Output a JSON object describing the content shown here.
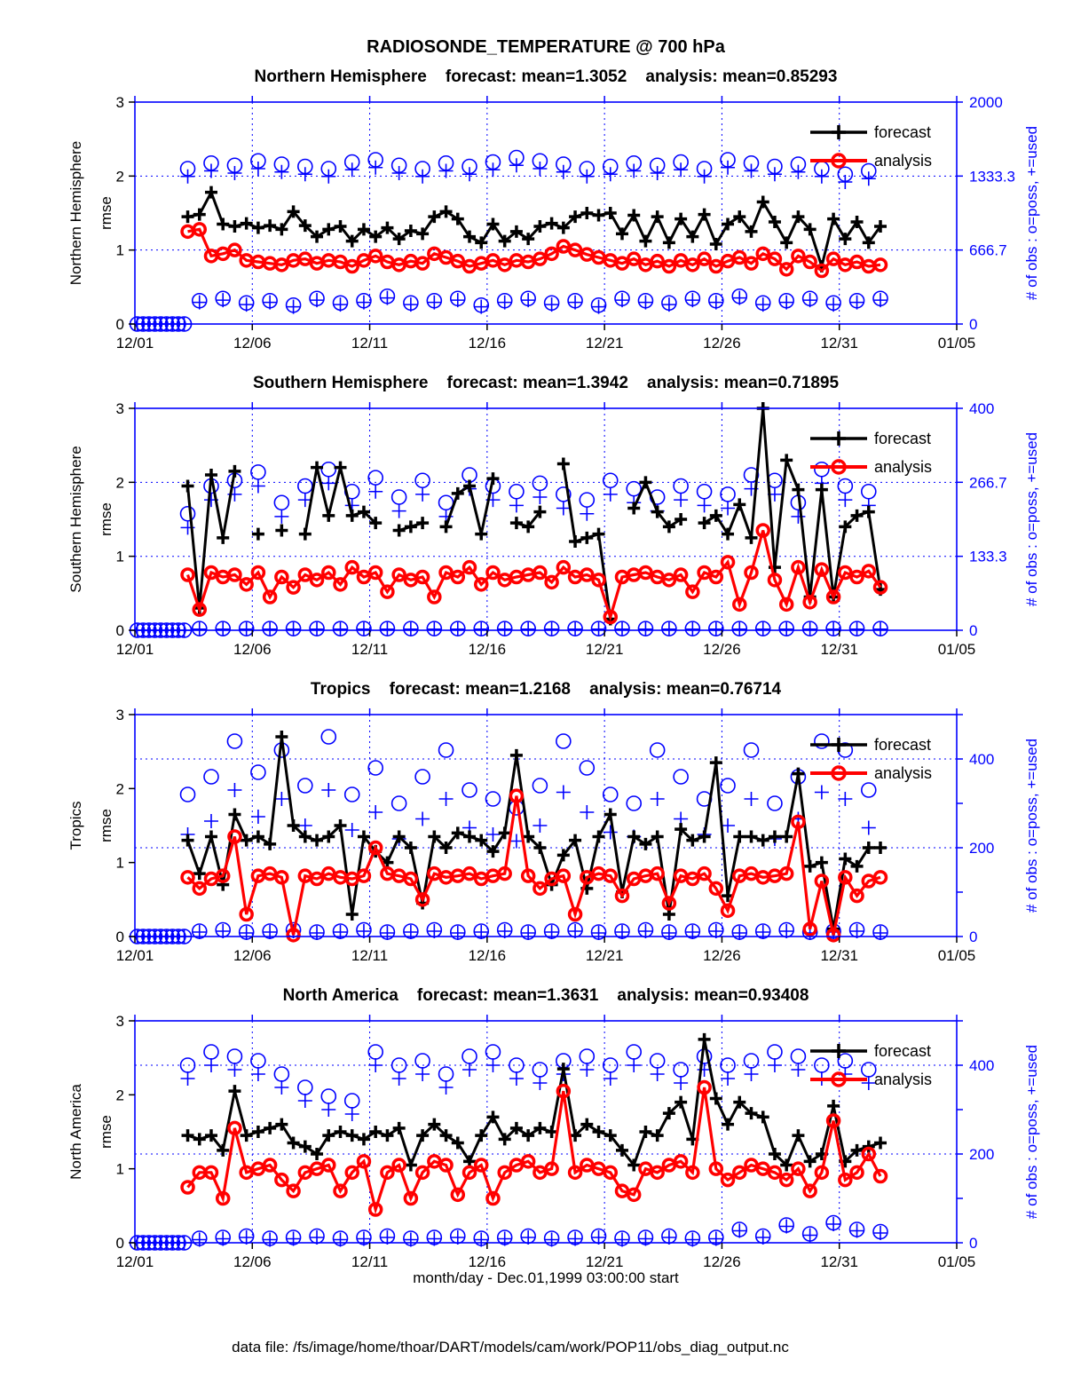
{
  "title": "RADIOSONDE_TEMPERATURE @ 700 hPa",
  "xlabel": "month/day - Dec.01,1999 03:00:00 start",
  "footer": "data file: /fs/image/home/thoar/DART/models/cam/work/POP11/obs_diag_output.nc",
  "legend": {
    "forecast": "forecast",
    "analysis": "analysis"
  },
  "labels": {
    "rmse": "rmse",
    "right_axis": "# of obs : o=poss, +=used"
  },
  "colors": {
    "forecast": "#000000",
    "analysis": "#ff0000",
    "obs": "#0000ff"
  },
  "chart_data": {
    "type": "line",
    "x_axis": {
      "tick_labels": [
        "12/01",
        "12/06",
        "12/11",
        "12/16",
        "12/21",
        "12/26",
        "12/31",
        "01/05"
      ],
      "tick_days": [
        0,
        5,
        10,
        15,
        20,
        25,
        30,
        35
      ],
      "max_day": 35
    },
    "left_axis": {
      "ticks": [
        0,
        1,
        2,
        3
      ],
      "max": 3,
      "label": "rmse"
    },
    "time_start_day": 2.25,
    "bin_days": 0.5,
    "lead_zero_days": [
      0.1,
      0.35,
      0.6,
      0.85,
      1.1,
      1.35,
      1.6,
      1.85,
      2.1
    ],
    "subplots": [
      {
        "region": "Northern Hemisphere",
        "title": "Northern Hemisphere    forecast: mean=1.3052    analysis: mean=0.85293",
        "forecast_mean": 1.3052,
        "analysis_mean": 0.85293,
        "right_axis": {
          "max": 2000,
          "ticks": [
            {
              "v": 0,
              "label": "0"
            },
            {
              "v": 666.7,
              "label": "666.7"
            },
            {
              "v": 1333.3,
              "label": "1333.3"
            },
            {
              "v": 2000,
              "label": "2000"
            }
          ],
          "marks": [
            0,
            666.7,
            1333.3,
            2000
          ],
          "grid": [
            666.7,
            1333.3
          ]
        },
        "forecast": [
          1.45,
          1.48,
          1.78,
          1.35,
          1.32,
          1.36,
          1.3,
          1.33,
          1.28,
          1.52,
          1.33,
          1.18,
          1.28,
          1.32,
          1.12,
          1.28,
          1.18,
          1.3,
          1.15,
          1.26,
          1.22,
          1.45,
          1.52,
          1.42,
          1.18,
          1.1,
          1.35,
          1.12,
          1.25,
          1.15,
          1.32,
          1.36,
          1.3,
          1.45,
          1.5,
          1.47,
          1.5,
          1.22,
          1.47,
          1.12,
          1.45,
          1.1,
          1.42,
          1.18,
          1.48,
          1.08,
          1.35,
          1.45,
          1.25,
          1.65,
          1.38,
          1.1,
          1.45,
          1.28,
          0.78,
          1.42,
          1.15,
          1.38,
          1.1,
          1.32
        ],
        "analysis": [
          1.25,
          1.28,
          0.92,
          0.95,
          1.0,
          0.86,
          0.84,
          0.82,
          0.8,
          0.86,
          0.88,
          0.82,
          0.86,
          0.84,
          0.78,
          0.86,
          0.92,
          0.84,
          0.8,
          0.85,
          0.82,
          0.95,
          0.9,
          0.85,
          0.78,
          0.82,
          0.86,
          0.8,
          0.86,
          0.84,
          0.88,
          0.95,
          1.05,
          1.0,
          0.94,
          0.9,
          0.86,
          0.82,
          0.88,
          0.8,
          0.85,
          0.78,
          0.86,
          0.8,
          0.88,
          0.78,
          0.85,
          0.9,
          0.82,
          0.95,
          0.88,
          0.74,
          0.92,
          0.84,
          0.72,
          0.88,
          0.8,
          0.84,
          0.78,
          0.8
        ],
        "obs_poss": [
          1400,
          210,
          1450,
          230,
          1430,
          190,
          1470,
          210,
          1440,
          170,
          1420,
          230,
          1400,
          190,
          1460,
          210,
          1480,
          250,
          1430,
          190,
          1400,
          210,
          1450,
          230,
          1420,
          170,
          1460,
          210,
          1500,
          230,
          1470,
          190,
          1440,
          210,
          1400,
          170,
          1420,
          230,
          1450,
          210,
          1430,
          190,
          1460,
          230,
          1400,
          210,
          1480,
          250,
          1450,
          190,
          1420,
          210,
          1440,
          230,
          1400,
          190,
          1350,
          210,
          1380,
          230
        ],
        "obs_used": [
          1330,
          195,
          1380,
          215,
          1360,
          175,
          1400,
          195,
          1370,
          155,
          1350,
          215,
          1330,
          175,
          1390,
          195,
          1410,
          235,
          1360,
          175,
          1330,
          195,
          1380,
          215,
          1350,
          155,
          1390,
          195,
          1430,
          215,
          1400,
          175,
          1370,
          195,
          1330,
          155,
          1350,
          215,
          1380,
          195,
          1360,
          175,
          1390,
          215,
          1330,
          195,
          1410,
          235,
          1380,
          175,
          1350,
          195,
          1370,
          215,
          1330,
          175,
          1280,
          195,
          1310,
          215
        ]
      },
      {
        "region": "Southern Hemisphere",
        "title": "Southern Hemisphere    forecast: mean=1.3942    analysis: mean=0.71895",
        "forecast_mean": 1.3942,
        "analysis_mean": 0.71895,
        "right_axis": {
          "max": 400,
          "ticks": [
            {
              "v": 0,
              "label": "0"
            },
            {
              "v": 133.3,
              "label": "133.3"
            },
            {
              "v": 266.7,
              "label": "266.7"
            },
            {
              "v": 400,
              "label": "400"
            }
          ],
          "marks": [
            0,
            133.3,
            266.7,
            400
          ],
          "grid": [
            133.3,
            266.7
          ]
        },
        "forecast": [
          1.95,
          0.3,
          2.1,
          1.25,
          2.15,
          null,
          1.3,
          null,
          1.35,
          null,
          1.3,
          2.2,
          1.55,
          2.2,
          1.55,
          1.6,
          1.45,
          null,
          1.35,
          1.4,
          1.45,
          null,
          1.4,
          1.85,
          1.95,
          1.3,
          2.05,
          null,
          1.45,
          1.4,
          1.6,
          null,
          2.25,
          1.2,
          1.25,
          1.3,
          0.15,
          null,
          1.65,
          2.0,
          1.6,
          1.4,
          1.5,
          null,
          1.45,
          1.55,
          1.3,
          1.7,
          1.25,
          3.0,
          0.85,
          2.3,
          1.9,
          0.45,
          1.9,
          0.45,
          1.4,
          1.55,
          1.6,
          0.55
        ],
        "analysis": [
          0.75,
          0.28,
          0.78,
          0.72,
          0.75,
          0.62,
          0.78,
          0.45,
          0.72,
          0.58,
          0.75,
          0.68,
          0.78,
          0.62,
          0.85,
          0.72,
          0.78,
          0.52,
          0.75,
          0.68,
          0.72,
          0.45,
          0.78,
          0.72,
          0.85,
          0.62,
          0.78,
          0.68,
          0.72,
          0.75,
          0.78,
          0.65,
          0.85,
          0.72,
          0.75,
          0.68,
          0.18,
          0.72,
          0.75,
          0.78,
          0.72,
          0.68,
          0.75,
          0.52,
          0.78,
          0.72,
          0.92,
          0.35,
          0.78,
          1.35,
          0.68,
          0.35,
          0.85,
          0.38,
          0.82,
          0.45,
          0.78,
          0.72,
          0.8,
          0.58
        ],
        "obs_poss": [
          210,
          3,
          260,
          3,
          270,
          3,
          285,
          3,
          230,
          3,
          260,
          3,
          290,
          3,
          250,
          3,
          275,
          3,
          240,
          3,
          270,
          3,
          230,
          3,
          280,
          3,
          260,
          3,
          250,
          3,
          265,
          3,
          245,
          3,
          235,
          3,
          270,
          3,
          255,
          3,
          240,
          3,
          260,
          3,
          250,
          3,
          245,
          3,
          280,
          3,
          270,
          3,
          230,
          3,
          290,
          3,
          260,
          3,
          250,
          3
        ],
        "obs_used": [
          185,
          2,
          235,
          2,
          245,
          2,
          260,
          2,
          205,
          2,
          235,
          2,
          265,
          2,
          225,
          2,
          250,
          2,
          215,
          2,
          245,
          2,
          205,
          2,
          255,
          2,
          235,
          2,
          225,
          2,
          240,
          2,
          220,
          2,
          210,
          2,
          245,
          2,
          230,
          2,
          215,
          2,
          235,
          2,
          225,
          2,
          220,
          2,
          255,
          2,
          245,
          2,
          205,
          2,
          265,
          2,
          235,
          2,
          225,
          2
        ]
      },
      {
        "region": "Tropics",
        "title": "Tropics    forecast: mean=1.2168    analysis: mean=0.76714",
        "forecast_mean": 1.2168,
        "analysis_mean": 0.76714,
        "right_axis": {
          "max": 500,
          "ticks": [
            {
              "v": 0,
              "label": "0"
            },
            {
              "v": 200,
              "label": "200"
            },
            {
              "v": 400,
              "label": "400"
            }
          ],
          "marks": [
            0,
            100,
            200,
            300,
            400,
            500
          ],
          "grid": [
            200,
            400
          ]
        },
        "forecast": [
          1.3,
          0.85,
          1.35,
          0.7,
          1.65,
          1.3,
          1.35,
          1.25,
          2.7,
          1.5,
          1.35,
          1.3,
          1.35,
          1.5,
          0.3,
          1.35,
          1.15,
          1.0,
          1.35,
          1.2,
          0.45,
          1.35,
          1.2,
          1.4,
          1.35,
          1.3,
          1.15,
          1.4,
          2.45,
          1.35,
          1.2,
          0.7,
          1.1,
          1.3,
          0.65,
          1.35,
          1.65,
          0.6,
          1.35,
          1.25,
          1.35,
          0.3,
          1.45,
          1.3,
          1.35,
          2.35,
          0.55,
          1.35,
          1.35,
          1.3,
          1.35,
          1.35,
          2.2,
          0.95,
          1.0,
          0.1,
          1.05,
          0.95,
          1.2,
          1.2
        ],
        "analysis": [
          0.8,
          0.65,
          0.78,
          0.82,
          1.35,
          0.3,
          0.82,
          0.85,
          0.8,
          0.02,
          0.82,
          0.78,
          0.85,
          0.8,
          0.78,
          0.82,
          1.2,
          0.85,
          0.82,
          0.78,
          0.5,
          0.85,
          0.8,
          0.82,
          0.85,
          0.78,
          0.82,
          0.85,
          1.9,
          0.82,
          0.65,
          0.78,
          0.82,
          0.3,
          0.8,
          0.85,
          0.82,
          0.55,
          0.78,
          0.82,
          0.85,
          0.45,
          0.82,
          0.78,
          0.85,
          0.65,
          0.35,
          0.82,
          0.85,
          0.8,
          0.82,
          0.85,
          1.55,
          0.1,
          0.75,
          0.02,
          0.8,
          0.55,
          0.75,
          0.8
        ],
        "obs_poss": [
          320,
          12,
          360,
          15,
          440,
          10,
          370,
          12,
          420,
          15,
          340,
          10,
          450,
          12,
          320,
          15,
          380,
          10,
          300,
          12,
          360,
          15,
          420,
          10,
          330,
          12,
          310,
          15,
          290,
          10,
          340,
          12,
          440,
          15,
          380,
          10,
          320,
          12,
          300,
          15,
          420,
          10,
          360,
          12,
          310,
          15,
          340,
          10,
          420,
          12,
          300,
          15,
          360,
          10,
          440,
          12,
          420,
          15,
          330,
          10
        ],
        "obs_used": [
          230,
          10,
          260,
          12,
          330,
          8,
          270,
          10,
          310,
          12,
          250,
          8,
          330,
          10,
          240,
          12,
          280,
          8,
          220,
          10,
          265,
          12,
          310,
          8,
          245,
          10,
          230,
          12,
          215,
          8,
          250,
          10,
          325,
          12,
          280,
          8,
          235,
          10,
          225,
          12,
          310,
          8,
          265,
          10,
          230,
          12,
          250,
          8,
          310,
          10,
          220,
          12,
          265,
          8,
          325,
          10,
          310,
          12,
          245,
          8
        ]
      },
      {
        "region": "North America",
        "title": "North America    forecast: mean=1.3631    analysis: mean=0.93408",
        "forecast_mean": 1.3631,
        "analysis_mean": 0.93408,
        "right_axis": {
          "max": 500,
          "ticks": [
            {
              "v": 0,
              "label": "0"
            },
            {
              "v": 200,
              "label": "200"
            },
            {
              "v": 400,
              "label": "400"
            }
          ],
          "marks": [
            0,
            100,
            200,
            300,
            400,
            500
          ],
          "grid": [
            200,
            400
          ]
        },
        "forecast": [
          1.45,
          1.4,
          1.45,
          1.25,
          2.05,
          1.45,
          1.5,
          1.55,
          1.6,
          1.35,
          1.3,
          1.2,
          1.45,
          1.5,
          1.45,
          1.4,
          1.5,
          1.45,
          1.55,
          1.05,
          1.45,
          1.6,
          1.45,
          1.35,
          1.1,
          1.45,
          1.7,
          1.4,
          1.55,
          1.45,
          1.55,
          1.5,
          2.35,
          1.45,
          1.6,
          1.5,
          1.45,
          1.25,
          1.05,
          1.5,
          1.45,
          1.75,
          1.9,
          1.4,
          2.75,
          1.95,
          1.6,
          1.9,
          1.75,
          1.7,
          1.2,
          1.05,
          1.45,
          1.1,
          1.2,
          1.85,
          1.1,
          1.25,
          1.3,
          1.35
        ],
        "analysis": [
          0.75,
          0.95,
          0.95,
          0.6,
          1.55,
          0.95,
          1.0,
          1.05,
          0.85,
          0.7,
          0.95,
          1.0,
          1.05,
          0.7,
          0.95,
          1.1,
          0.45,
          0.95,
          1.05,
          0.6,
          0.95,
          1.1,
          1.05,
          0.65,
          0.95,
          1.05,
          0.6,
          0.95,
          1.05,
          1.1,
          0.95,
          1.0,
          2.05,
          0.95,
          1.05,
          1.0,
          0.95,
          0.7,
          0.65,
          1.0,
          0.95,
          1.05,
          1.1,
          0.95,
          2.1,
          1.0,
          0.85,
          0.95,
          1.05,
          1.0,
          0.95,
          0.85,
          1.0,
          0.7,
          0.95,
          1.65,
          0.85,
          0.95,
          1.2,
          0.9
        ],
        "obs_poss": [
          400,
          10,
          430,
          12,
          420,
          15,
          410,
          10,
          380,
          12,
          350,
          15,
          330,
          10,
          320,
          12,
          430,
          15,
          400,
          10,
          410,
          12,
          380,
          15,
          420,
          10,
          430,
          12,
          400,
          15,
          390,
          10,
          410,
          12,
          420,
          15,
          400,
          10,
          430,
          12,
          410,
          15,
          390,
          10,
          420,
          12,
          400,
          30,
          410,
          15,
          430,
          40,
          420,
          20,
          400,
          45,
          410,
          30,
          390,
          25
        ],
        "obs_used": [
          370,
          7,
          400,
          9,
          390,
          12,
          380,
          7,
          350,
          9,
          320,
          12,
          300,
          7,
          290,
          9,
          400,
          12,
          370,
          7,
          380,
          9,
          350,
          12,
          390,
          7,
          400,
          9,
          370,
          12,
          360,
          7,
          380,
          9,
          390,
          12,
          370,
          7,
          400,
          9,
          380,
          12,
          360,
          7,
          390,
          9,
          370,
          27,
          380,
          12,
          400,
          37,
          390,
          17,
          370,
          42,
          380,
          27,
          360,
          22
        ]
      }
    ]
  }
}
